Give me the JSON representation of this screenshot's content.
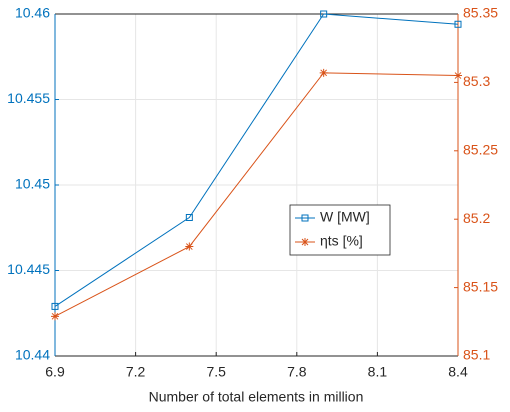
{
  "chart_data": {
    "type": "line",
    "x": [
      6.9,
      7.4,
      7.9,
      8.4
    ],
    "xlabel": "Number of total elements in million",
    "xlim": [
      6.9,
      8.4
    ],
    "xticks": [
      6.9,
      7.2,
      7.5,
      7.8,
      8.1,
      8.4
    ],
    "ylim": [
      10.44,
      10.46
    ],
    "yticks": [
      10.44,
      10.445,
      10.45,
      10.455,
      10.46
    ],
    "y2lim": [
      85.1,
      85.35
    ],
    "y2ticks": [
      85.1,
      85.15,
      85.2,
      85.25,
      85.3,
      85.35
    ],
    "grid": true,
    "legend": "east",
    "series": [
      {
        "name": "W [MW]",
        "color": "#0072BD",
        "marker": "square",
        "values": [
          10.4429,
          10.4481,
          10.46,
          10.4594
        ]
      },
      {
        "name": "ηts [%]",
        "color": "#D95319",
        "marker": "asterisk",
        "axis": "y2",
        "values": [
          85.129,
          85.18,
          85.307,
          85.305
        ]
      }
    ]
  }
}
